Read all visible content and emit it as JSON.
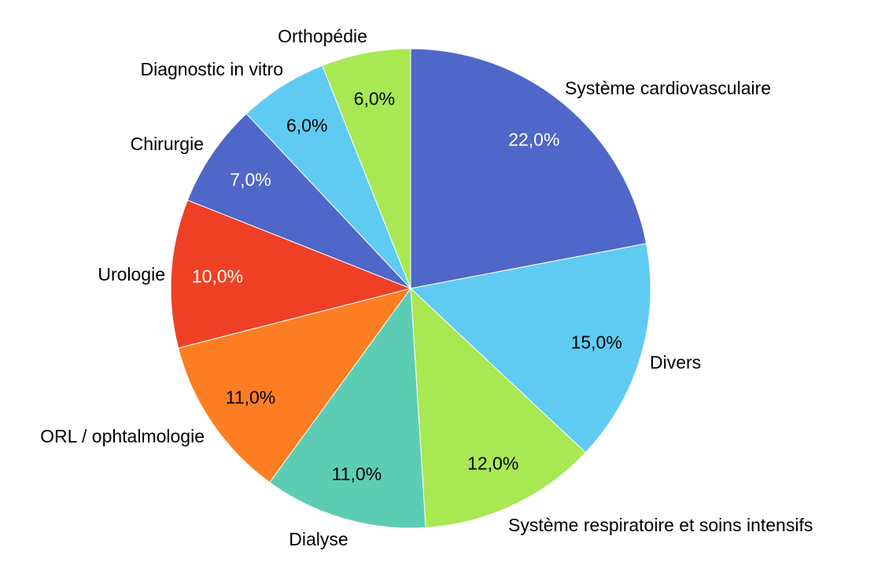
{
  "chart_data": {
    "type": "pie",
    "title": "",
    "legend": "none",
    "slices": [
      {
        "label": "Système cardiovasculaire",
        "value": 22.0,
        "value_label": "22,0%",
        "color": "#4F67C8",
        "label_color": "#FFFFFF"
      },
      {
        "label": "Divers",
        "value": 15.0,
        "value_label": "15,0%",
        "color": "#5FCBF2",
        "label_color": "#000000"
      },
      {
        "label": "Système respiratoire et soins intensifs",
        "value": 12.0,
        "value_label": "12,0%",
        "color": "#A7E853",
        "label_color": "#000000"
      },
      {
        "label": "Dialyse",
        "value": 11.0,
        "value_label": "11,0%",
        "color": "#5CCDB4",
        "label_color": "#000000"
      },
      {
        "label": "ORL / ophtalmologie",
        "value": 11.0,
        "value_label": "11,0%",
        "color": "#FD7E22",
        "label_color": "#000000"
      },
      {
        "label": "Urologie",
        "value": 10.0,
        "value_label": "10,0%",
        "color": "#EF4025",
        "label_color": "#FFFFFF"
      },
      {
        "label": "Chirurgie",
        "value": 7.0,
        "value_label": "7,0%",
        "color": "#4F67C8",
        "label_color": "#FFFFFF"
      },
      {
        "label": "Diagnostic in vitro",
        "value": 6.0,
        "value_label": "6,0%",
        "color": "#5FCBF2",
        "label_color": "#000000"
      },
      {
        "label": "Orthopédie",
        "value": 6.0,
        "value_label": "6,0%",
        "color": "#A7E853",
        "label_color": "#000000"
      }
    ]
  }
}
